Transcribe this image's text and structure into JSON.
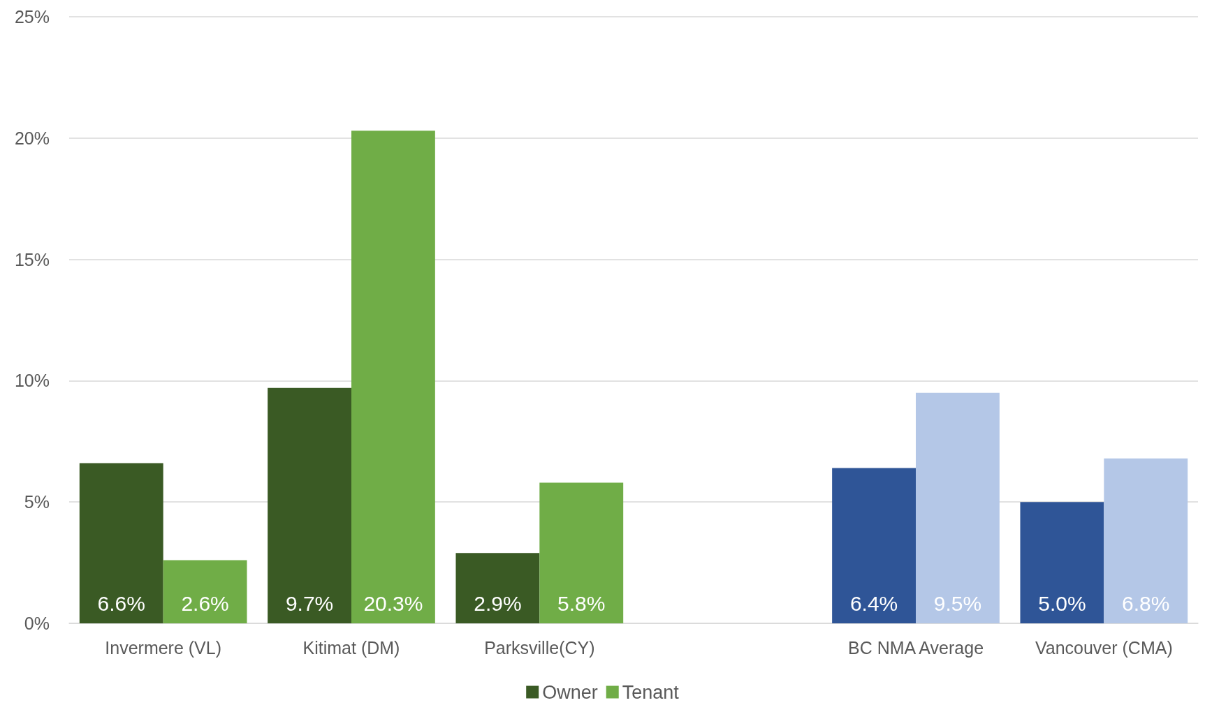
{
  "chart_data": {
    "type": "bar",
    "categories": [
      "Invermere (VL)",
      "Kitimat (DM)",
      "Parksville(CY)",
      null,
      "BC NMA Average",
      "Vancouver (CMA)"
    ],
    "series": [
      {
        "name": "Owner",
        "color": "#3a5a24",
        "colors": [
          "#3a5a24",
          "#3a5a24",
          "#3a5a24",
          "#3a5a24",
          "#2f5597",
          "#2f5597"
        ],
        "values": [
          6.6,
          9.7,
          2.9,
          null,
          6.4,
          5.0
        ],
        "value_labels": [
          "6.6%",
          "9.7%",
          "2.9%",
          null,
          "6.4%",
          "5.0%"
        ]
      },
      {
        "name": "Tenant",
        "color": "#70ad47",
        "colors": [
          "#70ad47",
          "#70ad47",
          "#70ad47",
          "#70ad47",
          "#b4c7e7",
          "#b4c7e7"
        ],
        "values": [
          2.6,
          20.3,
          5.8,
          null,
          9.5,
          6.8
        ],
        "value_labels": [
          "2.6%",
          "20.3%",
          "5.8%",
          null,
          "9.5%",
          "6.8%"
        ]
      }
    ],
    "ylim": [
      0,
      25
    ],
    "yticks": [
      {
        "value": 0,
        "label": "0%"
      },
      {
        "value": 5,
        "label": "5%"
      },
      {
        "value": 10,
        "label": "10%"
      },
      {
        "value": 15,
        "label": "15%"
      },
      {
        "value": 20,
        "label": "20%"
      },
      {
        "value": 25,
        "label": "25%"
      }
    ],
    "grid": "y",
    "legend": "bottom"
  }
}
